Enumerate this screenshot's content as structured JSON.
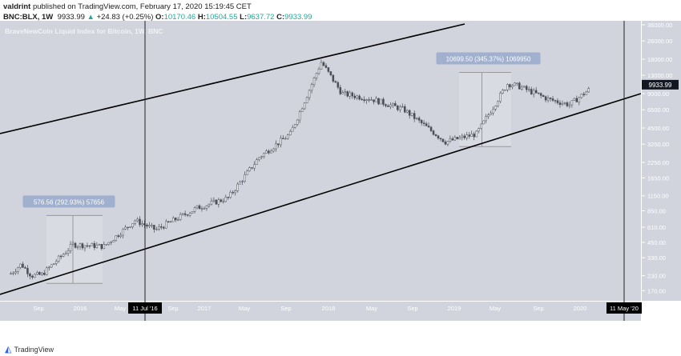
{
  "header": {
    "author": "valdrint",
    "published": "published on TradingView.com, February 17, 2020 15:19:45 CET",
    "symbol": "BNC:BLX, 1W",
    "last": "9933.99",
    "change": "+24.83 (+0.25%)",
    "o_label": "O:",
    "open": "10170.46",
    "h_label": "H:",
    "high": "10504.55",
    "l_label": "L:",
    "low": "9637.72",
    "c_label": "C:",
    "close": "9933.99"
  },
  "legend": "BraveNewCoin Liquid Index for Bitcoin, 1W, BNC",
  "footer": {
    "brand": "TradingView"
  },
  "colors": {
    "bg": "#d1d4dc",
    "candle": "#6b6e78",
    "axis": "#ffffff",
    "label": "#131722",
    "measure": "#9aaccc"
  },
  "chart_data": {
    "type": "candlestick",
    "scale": "log",
    "interval": "1W",
    "price_ticks": [
      "36000.00",
      "26000.00",
      "18000.00",
      "13000.00",
      "9000.00",
      "6500.00",
      "4500.00",
      "3250.00",
      "2250.00",
      "1650.00",
      "1150.00",
      "850.00",
      "610.00",
      "450.00",
      "330.00",
      "230.00",
      "170.00",
      "126.00"
    ],
    "time_ticks": [
      "Sep",
      "2016",
      "May",
      "Sep",
      "2017",
      "May",
      "Sep",
      "2018",
      "May",
      "Sep",
      "2019",
      "May",
      "Sep",
      "2020"
    ],
    "last_price_label": "9933.99",
    "price_path": [
      [
        "2015-06",
        240
      ],
      [
        "2015-07",
        290
      ],
      [
        "2015-08",
        230
      ],
      [
        "2015-09",
        235
      ],
      [
        "2015-11",
        350
      ],
      [
        "2015-12",
        430
      ],
      [
        "2016-03",
        415
      ],
      [
        "2016-06",
        700
      ],
      [
        "2016-08",
        580
      ],
      [
        "2016-12",
        900
      ],
      [
        "2017-03",
        1100
      ],
      [
        "2017-06",
        2500
      ],
      [
        "2017-09",
        4000
      ],
      [
        "2017-12",
        17000
      ],
      [
        "2018-02",
        9000
      ],
      [
        "2018-05",
        8000
      ],
      [
        "2018-08",
        6500
      ],
      [
        "2018-11",
        4000
      ],
      [
        "2018-12",
        3400
      ],
      [
        "2019-03",
        4000
      ],
      [
        "2019-06",
        11000
      ],
      [
        "2019-07",
        10500
      ],
      [
        "2019-10",
        8000
      ],
      [
        "2019-12",
        7200
      ],
      [
        "2020-02",
        9934
      ]
    ],
    "vertical_markers": [
      "11 Jul '16",
      "11 May '20"
    ],
    "measurements": [
      {
        "label": "576.56 (292.93%) 57656",
        "from": 197,
        "to": 773
      },
      {
        "label": "10699.50 (345.37%) 1069950",
        "from": 3098,
        "to": 13797
      }
    ],
    "trendlines": [
      "upper channel",
      "lower channel"
    ]
  }
}
